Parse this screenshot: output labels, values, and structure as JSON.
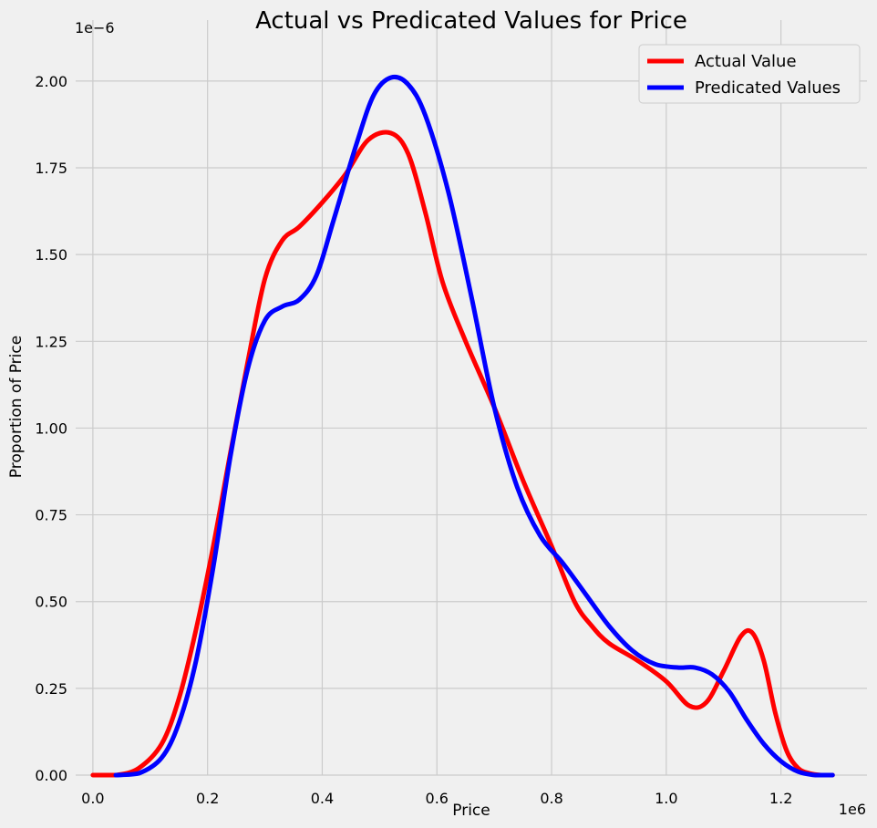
{
  "chart_data": {
    "type": "line",
    "title": "Actual vs Predicated Values for Price",
    "xlabel": "Price",
    "ylabel": "Proportion of Price",
    "x_offset_label": "1e6",
    "y_offset_label": "1e−6",
    "xlim": [
      -0.03,
      1.35
    ],
    "ylim": [
      0,
      2.11
    ],
    "x_ticks": [
      0.0,
      0.2,
      0.4,
      0.6,
      0.8,
      1.0,
      1.2
    ],
    "x_tick_labels": [
      "0.0",
      "0.2",
      "0.4",
      "0.6",
      "0.8",
      "1.0",
      "1.2"
    ],
    "y_ticks": [
      0.0,
      0.25,
      0.5,
      0.75,
      1.0,
      1.25,
      1.5,
      1.75,
      2.0
    ],
    "y_tick_labels": [
      "0.00",
      "0.25",
      "0.50",
      "0.75",
      "1.00",
      "1.25",
      "1.50",
      "1.75",
      "2.00"
    ],
    "grid": true,
    "legend_position": "top-right",
    "series": [
      {
        "name": "Actual Value",
        "color": "#ff0000",
        "x": [
          0.0,
          0.04,
          0.08,
          0.12,
          0.15,
          0.18,
          0.21,
          0.24,
          0.27,
          0.3,
          0.33,
          0.36,
          0.4,
          0.44,
          0.48,
          0.52,
          0.55,
          0.58,
          0.61,
          0.65,
          0.7,
          0.75,
          0.8,
          0.84,
          0.87,
          0.9,
          0.95,
          1.0,
          1.04,
          1.07,
          1.1,
          1.13,
          1.15,
          1.17,
          1.19,
          1.21,
          1.23,
          1.25,
          1.27,
          1.29
        ],
        "y": [
          0.0,
          0.0,
          0.02,
          0.09,
          0.22,
          0.42,
          0.66,
          0.93,
          1.19,
          1.43,
          1.54,
          1.58,
          1.65,
          1.73,
          1.83,
          1.85,
          1.79,
          1.62,
          1.42,
          1.25,
          1.06,
          0.85,
          0.66,
          0.5,
          0.43,
          0.38,
          0.33,
          0.27,
          0.2,
          0.21,
          0.3,
          0.4,
          0.41,
          0.33,
          0.18,
          0.07,
          0.02,
          0.005,
          0.0,
          0.0
        ]
      },
      {
        "name": "Predicated Values",
        "color": "#0000ff",
        "x": [
          0.04,
          0.08,
          0.12,
          0.15,
          0.18,
          0.21,
          0.24,
          0.27,
          0.3,
          0.33,
          0.36,
          0.39,
          0.42,
          0.46,
          0.49,
          0.52,
          0.55,
          0.58,
          0.62,
          0.66,
          0.7,
          0.74,
          0.78,
          0.82,
          0.86,
          0.9,
          0.94,
          0.98,
          1.02,
          1.05,
          1.08,
          1.11,
          1.14,
          1.17,
          1.2,
          1.23,
          1.26,
          1.29
        ],
        "y": [
          0.0,
          0.005,
          0.05,
          0.15,
          0.33,
          0.6,
          0.92,
          1.17,
          1.31,
          1.35,
          1.37,
          1.44,
          1.6,
          1.82,
          1.96,
          2.01,
          1.99,
          1.9,
          1.68,
          1.38,
          1.06,
          0.83,
          0.69,
          0.61,
          0.52,
          0.43,
          0.36,
          0.32,
          0.31,
          0.31,
          0.29,
          0.24,
          0.16,
          0.09,
          0.04,
          0.01,
          0.0,
          0.0
        ]
      }
    ]
  }
}
